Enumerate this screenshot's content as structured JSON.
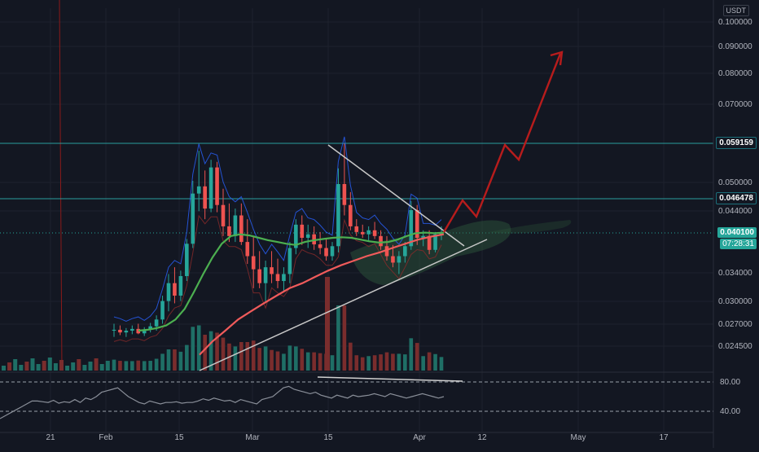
{
  "currency_label": "USDT",
  "price_axis": {
    "ticks": [
      "0.100000",
      "0.090000",
      "0.080000",
      "0.070000",
      "0.050000",
      "0.044000",
      "0.034000",
      "0.030000",
      "0.027000",
      "0.024500"
    ],
    "badges": [
      {
        "label": "0.059159",
        "style": "dark"
      },
      {
        "label": "0.046478",
        "style": "dark"
      },
      {
        "label": "0.040100",
        "style": "green"
      },
      {
        "label": "07:28:31",
        "style": "green"
      }
    ]
  },
  "rsi_axis": {
    "ticks": [
      "80.00",
      "40.00"
    ]
  },
  "time_axis": {
    "ticks": [
      "21",
      "Feb",
      "15",
      "Mar",
      "15",
      "Apr",
      "12",
      "May",
      "17"
    ]
  },
  "colors": {
    "background": "#131722",
    "up": "#26a69a",
    "down": "#ef5350",
    "ma_fast": "#4caf50",
    "ma_slow": "#f05b5b",
    "band": "#2962ff",
    "level_line": "#2a9d9f",
    "projection": "#b71c1c",
    "trendline": "#c8c8c8"
  },
  "chart_data": {
    "type": "candlestick",
    "symbol_quote": "USDT",
    "price_range": [
      0.0235,
      0.103
    ],
    "horizontal_levels": [
      0.059159,
      0.046478
    ],
    "last_price": 0.0401,
    "candles_ohlc_approx": [
      [
        0.0262,
        0.027,
        0.0255,
        0.0263
      ],
      [
        0.0263,
        0.0268,
        0.0257,
        0.026
      ],
      [
        0.026,
        0.0265,
        0.0255,
        0.0262
      ],
      [
        0.0262,
        0.0268,
        0.0258,
        0.0264
      ],
      [
        0.0264,
        0.027,
        0.0258,
        0.0259
      ],
      [
        0.0259,
        0.0266,
        0.0256,
        0.0263
      ],
      [
        0.0263,
        0.0271,
        0.026,
        0.0267
      ],
      [
        0.0267,
        0.028,
        0.0262,
        0.0275
      ],
      [
        0.0275,
        0.0305,
        0.027,
        0.0298
      ],
      [
        0.0298,
        0.0335,
        0.0285,
        0.0322
      ],
      [
        0.0322,
        0.0345,
        0.0295,
        0.0305
      ],
      [
        0.0305,
        0.034,
        0.0298,
        0.0332
      ],
      [
        0.0332,
        0.039,
        0.0325,
        0.0382
      ],
      [
        0.0382,
        0.0502,
        0.0375,
        0.0475
      ],
      [
        0.0475,
        0.0572,
        0.044,
        0.049
      ],
      [
        0.049,
        0.0525,
        0.0425,
        0.0445
      ],
      [
        0.0445,
        0.055,
        0.0438,
        0.0532
      ],
      [
        0.0532,
        0.0545,
        0.0438,
        0.0452
      ],
      [
        0.0452,
        0.0485,
        0.0395,
        0.0412
      ],
      [
        0.0412,
        0.0455,
        0.0385,
        0.0395
      ],
      [
        0.0395,
        0.0445,
        0.0385,
        0.0432
      ],
      [
        0.0432,
        0.0455,
        0.038,
        0.0385
      ],
      [
        0.0385,
        0.0425,
        0.035,
        0.0362
      ],
      [
        0.0362,
        0.0395,
        0.0315,
        0.0342
      ],
      [
        0.0342,
        0.037,
        0.0315,
        0.0322
      ],
      [
        0.0322,
        0.0355,
        0.0295,
        0.0345
      ],
      [
        0.0345,
        0.037,
        0.0322,
        0.0335
      ],
      [
        0.0335,
        0.0358,
        0.0315,
        0.0325
      ],
      [
        0.0325,
        0.0345,
        0.031,
        0.0335
      ],
      [
        0.0335,
        0.0385,
        0.0322,
        0.0375
      ],
      [
        0.0375,
        0.0425,
        0.0365,
        0.0415
      ],
      [
        0.0415,
        0.0432,
        0.038,
        0.0392
      ],
      [
        0.0392,
        0.0415,
        0.0375,
        0.0398
      ],
      [
        0.0398,
        0.0412,
        0.0372,
        0.0381
      ],
      [
        0.0381,
        0.0402,
        0.0365,
        0.0375
      ],
      [
        0.0375,
        0.039,
        0.0355,
        0.0362
      ],
      [
        0.0362,
        0.0385,
        0.0355,
        0.0378
      ],
      [
        0.0378,
        0.053,
        0.0368,
        0.0495
      ],
      [
        0.0495,
        0.059,
        0.0432,
        0.0452
      ],
      [
        0.0452,
        0.0478,
        0.0405,
        0.0412
      ],
      [
        0.0412,
        0.0425,
        0.0395,
        0.0402
      ],
      [
        0.0402,
        0.0415,
        0.0392,
        0.0398
      ],
      [
        0.0398,
        0.0412,
        0.0385,
        0.0405
      ],
      [
        0.0405,
        0.042,
        0.039,
        0.0395
      ],
      [
        0.0395,
        0.0405,
        0.0372,
        0.0378
      ],
      [
        0.0378,
        0.0395,
        0.0355,
        0.0362
      ],
      [
        0.0362,
        0.038,
        0.0345,
        0.0352
      ],
      [
        0.0352,
        0.037,
        0.0335,
        0.0362
      ],
      [
        0.0362,
        0.0385,
        0.0352,
        0.0378
      ],
      [
        0.0378,
        0.046,
        0.0372,
        0.0442
      ],
      [
        0.0442,
        0.0452,
        0.038,
        0.0392
      ],
      [
        0.0392,
        0.0405,
        0.0378,
        0.0395
      ],
      [
        0.0395,
        0.0405,
        0.0365,
        0.0372
      ],
      [
        0.0372,
        0.0402,
        0.0368,
        0.0398
      ],
      [
        0.0398,
        0.0412,
        0.0388,
        0.0401
      ]
    ],
    "ma_fast_approx": [
      0.0262,
      0.0263,
      0.0265,
      0.0268,
      0.0275,
      0.0288,
      0.031,
      0.0335,
      0.036,
      0.0382,
      0.0395,
      0.0398,
      0.0396,
      0.0392,
      0.0388,
      0.0385,
      0.0382,
      0.038,
      0.0385,
      0.0388,
      0.039,
      0.0392,
      0.0393,
      0.0392,
      0.0389,
      0.0386,
      0.0384,
      0.0385,
      0.0389,
      0.0395,
      0.04,
      0.0401,
      0.04,
      0.0401
    ],
    "ma_slow_approx": [
      0.0236,
      0.025,
      0.0262,
      0.0275,
      0.0285,
      0.0295,
      0.0305,
      0.0315,
      0.0322,
      0.0331,
      0.034,
      0.0348,
      0.0355,
      0.0362,
      0.0368,
      0.0375,
      0.0382,
      0.0389,
      0.0394,
      0.0398
    ],
    "rsi": {
      "levels": [
        80,
        40
      ]
    }
  }
}
